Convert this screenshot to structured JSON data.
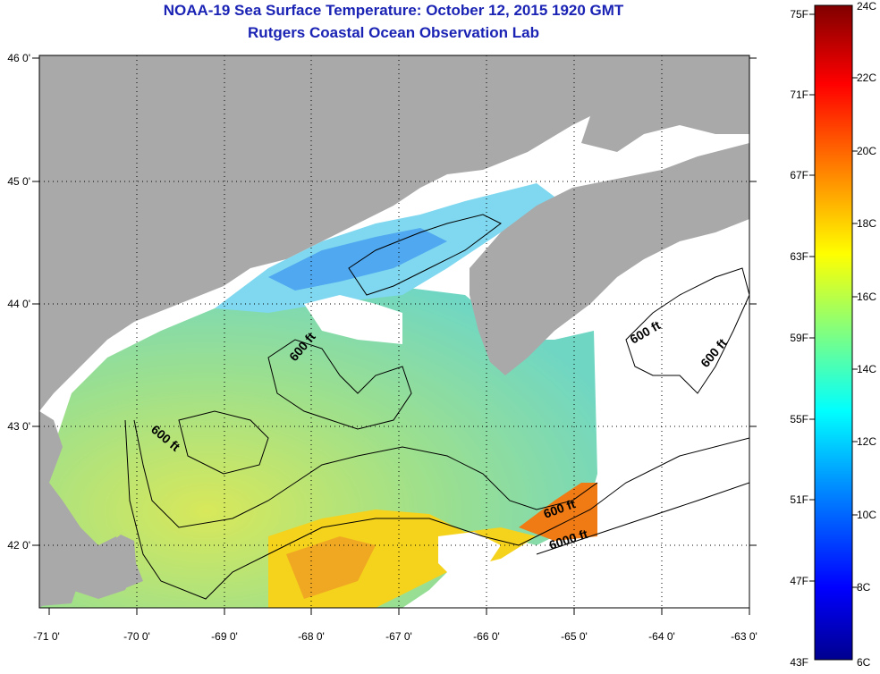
{
  "title": "NOAA-19 Sea Surface Temperature:  October 12, 2015 1920 GMT",
  "subtitle": "Rutgers Coastal Ocean Observation Lab",
  "map": {
    "lon_ticks": [
      "-71 0'",
      "-70 0'",
      "-69 0'",
      "-68 0'",
      "-67 0'",
      "-66 0'",
      "-65 0'",
      "-64 0'",
      "-63 0'"
    ],
    "lat_ticks": [
      "46 0'",
      "45 0'",
      "44 0'",
      "43 0'",
      "42 0'"
    ],
    "contour_labels": [
      "600 ft",
      "600 ft",
      "600 ft",
      "600 ft",
      "600 ft",
      "6000 ft"
    ],
    "colors": {
      "land": "#a9a9a9",
      "cloud": "#ffffff",
      "ocean_mid": "#7fe07a"
    }
  },
  "colorbar": {
    "f_labels": [
      "75F",
      "71F",
      "67F",
      "63F",
      "59F",
      "55F",
      "51F",
      "47F",
      "43F"
    ],
    "c_labels": [
      "24C",
      "22C",
      "20C",
      "18C",
      "16C",
      "14C",
      "12C",
      "10C",
      "8C",
      "6C"
    ]
  }
}
